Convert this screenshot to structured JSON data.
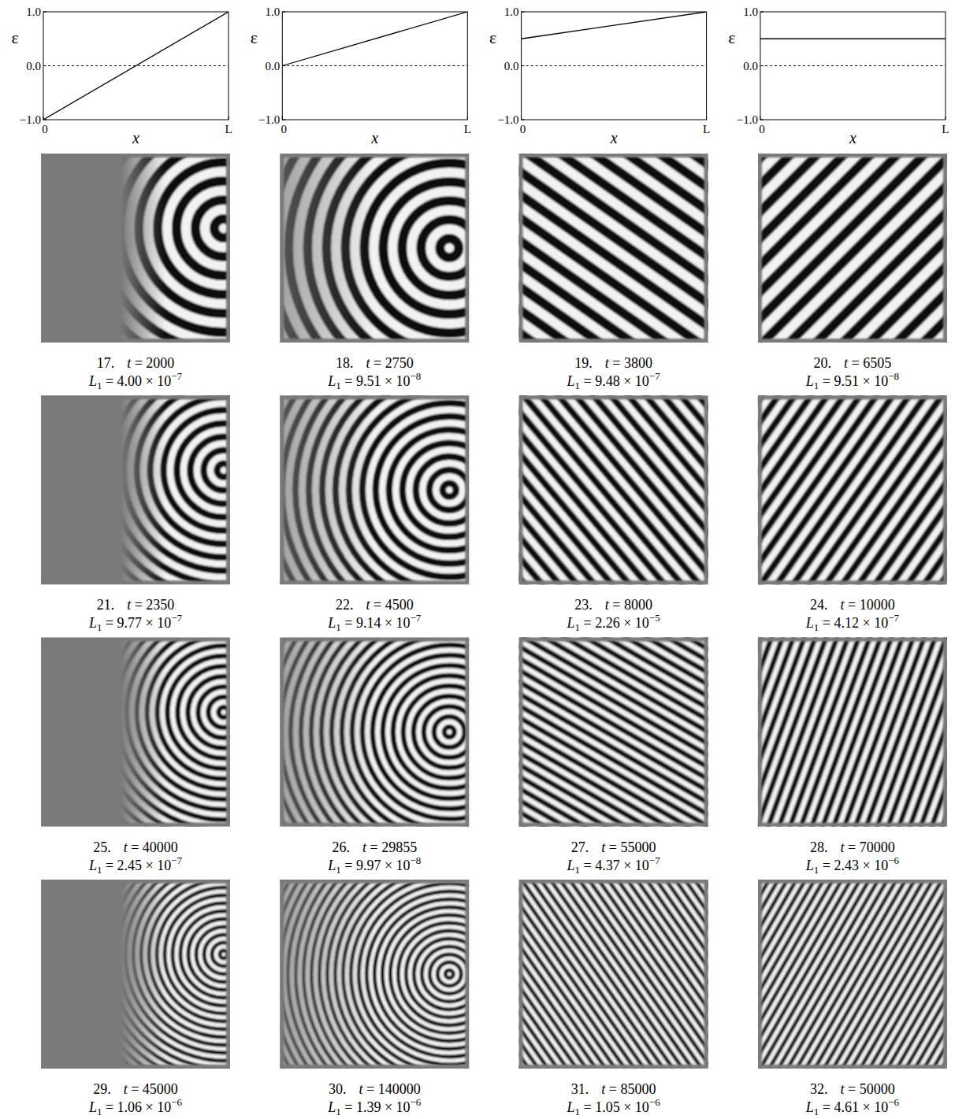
{
  "chart_data": [
    {
      "type": "line",
      "x_label": "x",
      "y_label": "ε",
      "x": [
        0,
        1
      ],
      "xlim": [
        0,
        1
      ],
      "ylim": [
        -1,
        1
      ],
      "xticks": [
        {
          "value": 0,
          "label": "0"
        },
        {
          "value": 1,
          "label": "L"
        }
      ],
      "yticks": [
        {
          "value": -1,
          "label": "−1.0"
        },
        {
          "value": 0,
          "label": "0.0"
        },
        {
          "value": 1,
          "label": "1.0"
        }
      ],
      "series": [
        {
          "color": "#000000",
          "line_style": "solid",
          "values": [
            -1,
            1
          ]
        },
        {
          "color": "#000000",
          "line_style": "dashed",
          "values": [
            0,
            0
          ]
        }
      ]
    },
    {
      "type": "line",
      "x_label": "x",
      "y_label": "ε",
      "x": [
        0,
        1
      ],
      "xlim": [
        0,
        1
      ],
      "ylim": [
        -1,
        1
      ],
      "xticks": [
        {
          "value": 0,
          "label": "0"
        },
        {
          "value": 1,
          "label": "L"
        }
      ],
      "yticks": [
        {
          "value": -1,
          "label": "−1.0"
        },
        {
          "value": 0,
          "label": "0.0"
        },
        {
          "value": 1,
          "label": "1.0"
        }
      ],
      "series": [
        {
          "color": "#000000",
          "line_style": "solid",
          "values": [
            0,
            1
          ]
        },
        {
          "color": "#000000",
          "line_style": "dashed",
          "values": [
            0,
            0
          ]
        }
      ]
    },
    {
      "type": "line",
      "x_label": "x",
      "y_label": "ε",
      "x": [
        0,
        1
      ],
      "xlim": [
        0,
        1
      ],
      "ylim": [
        -1,
        1
      ],
      "xticks": [
        {
          "value": 0,
          "label": "0"
        },
        {
          "value": 1,
          "label": "L"
        }
      ],
      "yticks": [
        {
          "value": -1,
          "label": "−1.0"
        },
        {
          "value": 0,
          "label": "0.0"
        },
        {
          "value": 1,
          "label": "1.0"
        }
      ],
      "series": [
        {
          "color": "#000000",
          "line_style": "solid",
          "values": [
            0.5,
            1
          ]
        },
        {
          "color": "#000000",
          "line_style": "dashed",
          "values": [
            0,
            0
          ]
        }
      ]
    },
    {
      "type": "line",
      "x_label": "x",
      "y_label": "ε",
      "x": [
        0,
        1
      ],
      "xlim": [
        0,
        1
      ],
      "ylim": [
        -1,
        1
      ],
      "xticks": [
        {
          "value": 0,
          "label": "0"
        },
        {
          "value": 1,
          "label": "L"
        }
      ],
      "yticks": [
        {
          "value": -1,
          "label": "−1.0"
        },
        {
          "value": 0,
          "label": "0.0"
        },
        {
          "value": 1,
          "label": "1.0"
        }
      ],
      "series": [
        {
          "color": "#000000",
          "line_style": "solid",
          "values": [
            0.5,
            0.5
          ]
        },
        {
          "color": "#000000",
          "line_style": "dashed",
          "values": [
            0,
            0
          ]
        }
      ]
    }
  ],
  "caption": {
    "t": "t",
    "equals": "=",
    "L": "L",
    "subscript": "1",
    "times": "×",
    "base": "10"
  },
  "panels": [
    {
      "label": "17.",
      "t": 2000,
      "mantissa": "4.00",
      "exponent": "−7"
    },
    {
      "label": "18.",
      "t": 2750,
      "mantissa": "9.51",
      "exponent": "−8"
    },
    {
      "label": "19.",
      "t": 3800,
      "mantissa": "9.48",
      "exponent": "−7"
    },
    {
      "label": "20.",
      "t": 6505,
      "mantissa": "9.51",
      "exponent": "−8"
    },
    {
      "label": "21.",
      "t": 2350,
      "mantissa": "9.77",
      "exponent": "−7"
    },
    {
      "label": "22.",
      "t": 4500,
      "mantissa": "9.14",
      "exponent": "−7"
    },
    {
      "label": "23.",
      "t": 8000,
      "mantissa": "2.26",
      "exponent": "−5"
    },
    {
      "label": "24.",
      "t": 10000,
      "mantissa": "4.12",
      "exponent": "−7"
    },
    {
      "label": "25.",
      "t": 40000,
      "mantissa": "2.45",
      "exponent": "−7"
    },
    {
      "label": "26.",
      "t": 29855,
      "mantissa": "9.97",
      "exponent": "−8"
    },
    {
      "label": "27.",
      "t": 55000,
      "mantissa": "4.37",
      "exponent": "−7"
    },
    {
      "label": "28.",
      "t": 70000,
      "mantissa": "2.43",
      "exponent": "−6"
    },
    {
      "label": "29.",
      "t": 45000,
      "mantissa": "1.06",
      "exponent": "−6"
    },
    {
      "label": "30.",
      "t": 140000,
      "mantissa": "1.39",
      "exponent": "−6"
    },
    {
      "label": "31.",
      "t": 85000,
      "mantissa": "1.05",
      "exponent": "−6"
    },
    {
      "label": "32.",
      "t": 50000,
      "mantissa": "4.61",
      "exponent": "−6"
    }
  ]
}
